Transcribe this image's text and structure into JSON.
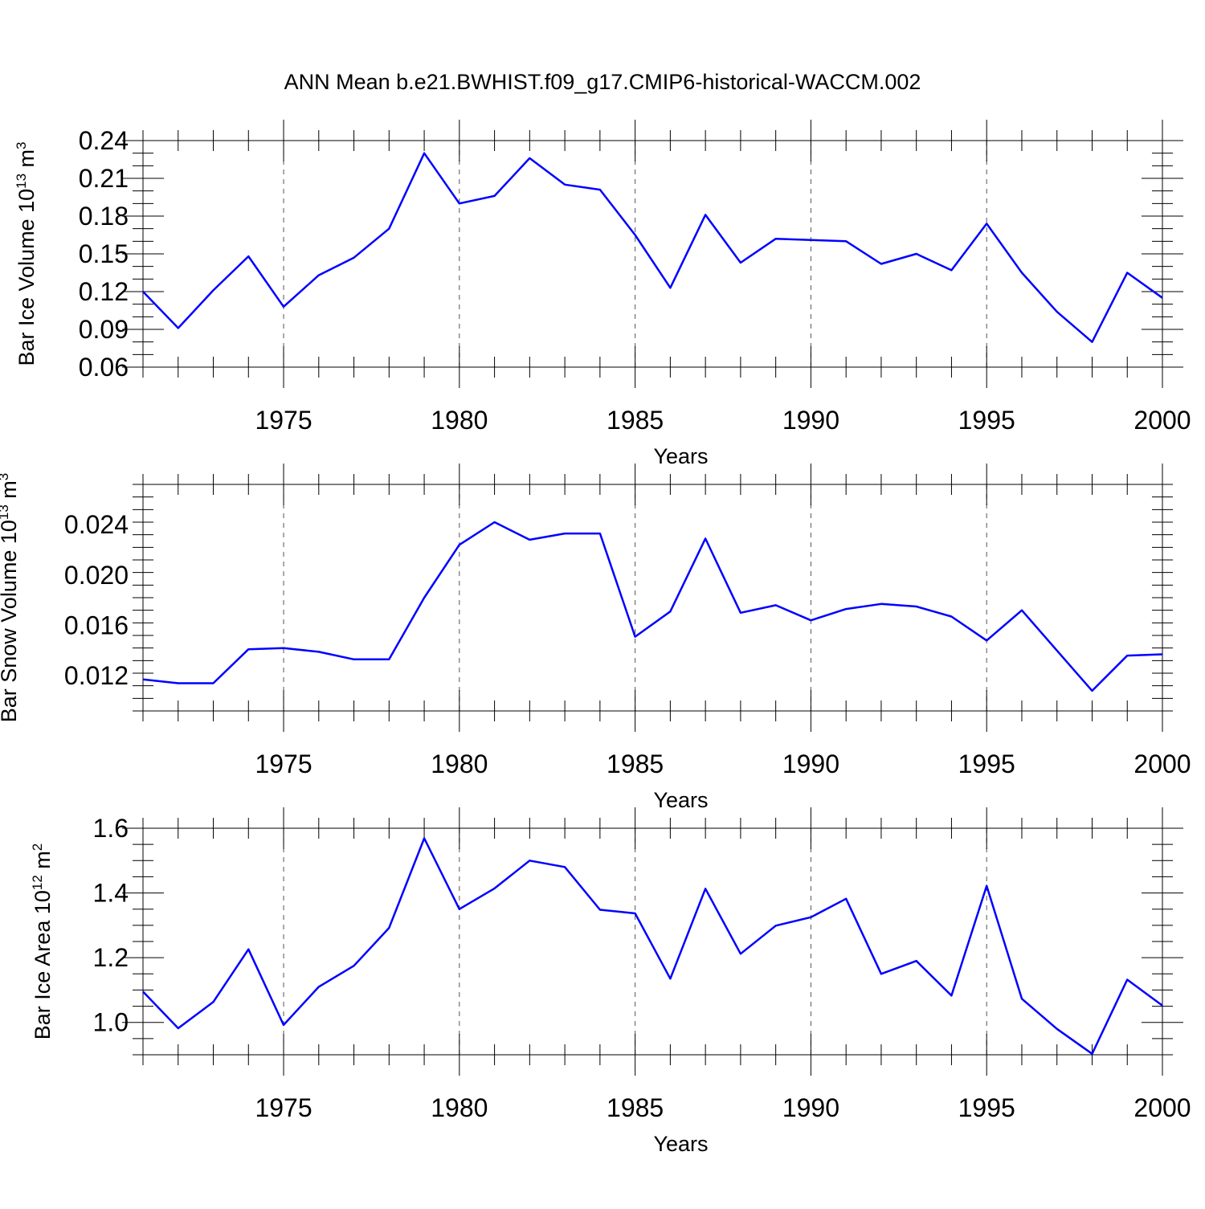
{
  "title": "ANN Mean b.e21.BWHIST.f09_g17.CMIP6-historical-WACCM.002",
  "colors": {
    "series": "#0000ff",
    "axis": "#000000",
    "grid": "#555555"
  },
  "chart_data": [
    {
      "type": "line",
      "title": "ANN Mean b.e21.BWHIST.f09_g17.CMIP6-historical-WACCM.002",
      "xlabel": "Years",
      "ylabel": "Bar Ice Volume 10",
      "ylabel_exp": "13",
      "ylabel_unit": " m",
      "ylabel_unit_exp": "3",
      "xlim": [
        1971,
        2000
      ],
      "ylim": [
        0.06,
        0.24
      ],
      "xticks": [
        1975,
        1980,
        1985,
        1990,
        1995,
        2000
      ],
      "xtick_labels": [
        "1975",
        "1980",
        "1985",
        "1990",
        "1995",
        "2000"
      ],
      "xminor_step": 1,
      "yticks": [
        0.06,
        0.09,
        0.12,
        0.15,
        0.18,
        0.21,
        0.24
      ],
      "ytick_labels": [
        "0.06",
        "0.09",
        "0.12",
        "0.15",
        "0.18",
        "0.21",
        "0.24"
      ],
      "yminor_step": 0.01,
      "grid": "vertical dashed at major x ticks",
      "x": [
        1971,
        1972,
        1973,
        1974,
        1975,
        1976,
        1977,
        1978,
        1979,
        1980,
        1981,
        1982,
        1983,
        1984,
        1985,
        1986,
        1987,
        1988,
        1989,
        1990,
        1991,
        1992,
        1993,
        1994,
        1995,
        1996,
        1997,
        1998,
        1999,
        2000
      ],
      "values": [
        0.12,
        0.091,
        0.121,
        0.148,
        0.108,
        0.133,
        0.147,
        0.17,
        0.23,
        0.19,
        0.196,
        0.226,
        0.205,
        0.201,
        0.165,
        0.123,
        0.181,
        0.143,
        0.162,
        0.161,
        0.16,
        0.142,
        0.15,
        0.137,
        0.174,
        0.135,
        0.104,
        0.08,
        0.135,
        0.115
      ]
    },
    {
      "type": "line",
      "xlabel": "Years",
      "ylabel": "Bar Snow Volume 10",
      "ylabel_exp": "13",
      "ylabel_unit": " m",
      "ylabel_unit_exp": "3",
      "xlim": [
        1971,
        2000
      ],
      "ylim": [
        0.0092,
        0.0272
      ],
      "xticks": [
        1975,
        1980,
        1985,
        1990,
        1995,
        2000
      ],
      "xtick_labels": [
        "1975",
        "1980",
        "1985",
        "1990",
        "1995",
        "2000"
      ],
      "xminor_step": 1,
      "yticks": [
        0.012,
        0.016,
        0.02,
        0.024
      ],
      "ytick_labels": [
        "0.012",
        "0.016",
        "0.020",
        "0.024"
      ],
      "yminor_step": 0.001,
      "grid": "vertical dashed at major x ticks",
      "x": [
        1971,
        1972,
        1973,
        1974,
        1975,
        1976,
        1977,
        1978,
        1979,
        1980,
        1981,
        1982,
        1983,
        1984,
        1985,
        1986,
        1987,
        1988,
        1989,
        1990,
        1991,
        1992,
        1993,
        1994,
        1995,
        1996,
        1997,
        1998,
        1999,
        2000
      ],
      "values": [
        0.0117,
        0.0114,
        0.0114,
        0.0141,
        0.0142,
        0.0139,
        0.0133,
        0.0133,
        0.0182,
        0.0224,
        0.0242,
        0.0228,
        0.0233,
        0.0233,
        0.0151,
        0.0171,
        0.0229,
        0.017,
        0.0176,
        0.0164,
        0.0173,
        0.0177,
        0.0175,
        0.0167,
        0.0148,
        0.0172,
        0.014,
        0.0108,
        0.0136,
        0.0137
      ]
    },
    {
      "type": "line",
      "xlabel": "Years",
      "ylabel": "Bar Ice Area 10",
      "ylabel_exp": "12",
      "ylabel_unit": " m",
      "ylabel_unit_exp": "2",
      "xlim": [
        1971,
        2000
      ],
      "ylim": [
        0.9,
        1.6
      ],
      "xticks": [
        1975,
        1980,
        1985,
        1990,
        1995,
        2000
      ],
      "xtick_labels": [
        "1975",
        "1980",
        "1985",
        "1990",
        "1995",
        "2000"
      ],
      "xminor_step": 1,
      "yticks": [
        1.0,
        1.2,
        1.4,
        1.6
      ],
      "ytick_labels": [
        "1.0",
        "1.2",
        "1.4",
        "1.6"
      ],
      "yminor_step": 0.05,
      "grid": "vertical dashed at major x ticks",
      "x": [
        1971,
        1972,
        1973,
        1974,
        1975,
        1976,
        1977,
        1978,
        1979,
        1980,
        1981,
        1982,
        1983,
        1984,
        1985,
        1986,
        1987,
        1988,
        1989,
        1990,
        1991,
        1992,
        1993,
        1994,
        1995,
        1996,
        1997,
        1998,
        1999,
        2000
      ],
      "values": [
        1.095,
        0.982,
        1.063,
        1.226,
        0.992,
        1.11,
        1.175,
        1.292,
        1.569,
        1.35,
        1.414,
        1.5,
        1.48,
        1.348,
        1.337,
        1.135,
        1.413,
        1.212,
        1.299,
        1.325,
        1.382,
        1.15,
        1.19,
        1.083,
        1.422,
        1.073,
        0.98,
        0.903,
        1.132,
        1.052
      ]
    }
  ]
}
